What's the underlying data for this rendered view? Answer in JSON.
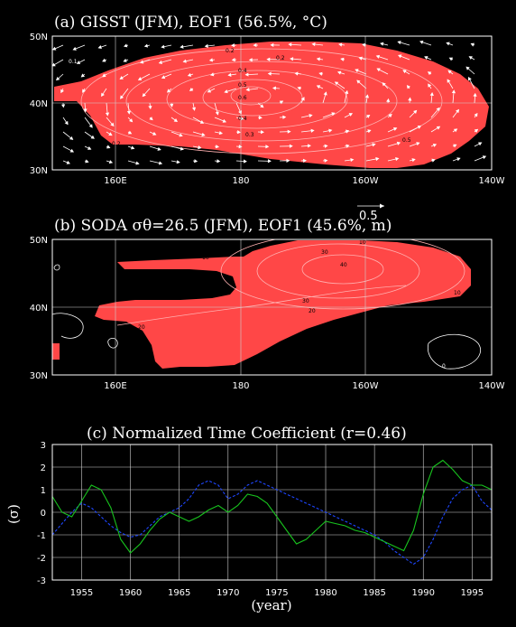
{
  "chart_data": [
    {
      "type": "heatmap",
      "title": "(a) GISST (JFM), EOF1 (56.5%, °C)",
      "ylabels": [
        "50N",
        "40N",
        "30N"
      ],
      "xlabels": [
        "160E",
        "180",
        "160W",
        "140W"
      ],
      "contour_labels": [
        "0.1",
        "0.2",
        "0.2",
        "0.4",
        "0.5",
        "0.6",
        "0.4",
        "0.3",
        "0.2",
        "0.5"
      ],
      "vector_reference": "0.5",
      "fill_color": "#ff4747"
    },
    {
      "type": "heatmap",
      "title": "(b) SODA σθ=26.5 (JFM), EOF1 (45.6%, m)",
      "ylabels": [
        "50N",
        "40N",
        "30N"
      ],
      "xlabels": [
        "160E",
        "180",
        "160W",
        "140W"
      ],
      "contour_labels": [
        "10",
        "30",
        "40",
        "30",
        "20",
        "20",
        "10",
        "10",
        "0",
        "10"
      ],
      "fill_color": "#ff4747"
    },
    {
      "type": "line",
      "title": "(c) Normalized Time Coefficient (r=0.46)",
      "xlabel": "(year)",
      "ylabel": "(σ)",
      "xlim": [
        1952,
        1997
      ],
      "ylim": [
        -3,
        3
      ],
      "xticks": [
        "1955",
        "1960",
        "1965",
        "1970",
        "1975",
        "1980",
        "1985",
        "1990",
        "1995"
      ],
      "yticks": [
        "3",
        "2",
        "1",
        "0",
        "-1",
        "-2",
        "-3"
      ],
      "grid": true,
      "series": [
        {
          "color": "#1e46ff",
          "style": "dashed",
          "x": [
            1952,
            1953,
            1954,
            1955,
            1956,
            1957,
            1958,
            1959,
            1960,
            1961,
            1962,
            1963,
            1964,
            1965,
            1966,
            1967,
            1968,
            1969,
            1970,
            1971,
            1972,
            1973,
            1974,
            1975,
            1976,
            1977,
            1978,
            1979,
            1980,
            1981,
            1982,
            1983,
            1984,
            1985,
            1986,
            1987,
            1988,
            1989,
            1990,
            1991,
            1992,
            1993,
            1994,
            1995,
            1996,
            1997
          ],
          "y": [
            -1.0,
            -0.5,
            0.0,
            0.4,
            0.2,
            -0.2,
            -0.6,
            -0.9,
            -1.1,
            -1.0,
            -0.6,
            -0.2,
            0.0,
            0.2,
            0.6,
            1.2,
            1.4,
            1.2,
            0.6,
            0.8,
            1.2,
            1.4,
            1.2,
            1.0,
            0.8,
            0.6,
            0.4,
            0.2,
            0.0,
            -0.2,
            -0.4,
            -0.6,
            -0.8,
            -1.0,
            -1.3,
            -1.7,
            -2.0,
            -2.3,
            -2.0,
            -1.2,
            -0.2,
            0.6,
            1.0,
            1.2,
            0.5,
            0.1
          ]
        },
        {
          "color": "#18c31e",
          "style": "solid",
          "x": [
            1952,
            1953,
            1954,
            1955,
            1956,
            1957,
            1958,
            1959,
            1960,
            1961,
            1962,
            1963,
            1964,
            1965,
            1966,
            1967,
            1968,
            1969,
            1970,
            1971,
            1972,
            1973,
            1974,
            1975,
            1976,
            1977,
            1978,
            1979,
            1980,
            1981,
            1982,
            1983,
            1984,
            1985,
            1986,
            1987,
            1988,
            1989,
            1990,
            1991,
            1992,
            1993,
            1994,
            1995,
            1996,
            1997
          ],
          "y": [
            0.7,
            0.0,
            -0.2,
            0.5,
            1.2,
            1.0,
            0.2,
            -1.2,
            -1.8,
            -1.4,
            -0.8,
            -0.3,
            0.0,
            -0.2,
            -0.4,
            -0.2,
            0.1,
            0.3,
            0.0,
            0.3,
            0.8,
            0.7,
            0.4,
            -0.2,
            -0.8,
            -1.4,
            -1.2,
            -0.8,
            -0.4,
            -0.5,
            -0.6,
            -0.8,
            -0.9,
            -1.1,
            -1.3,
            -1.5,
            -1.7,
            -0.8,
            0.8,
            2.0,
            2.3,
            1.9,
            1.4,
            1.2,
            1.2,
            1.0
          ]
        }
      ]
    }
  ]
}
